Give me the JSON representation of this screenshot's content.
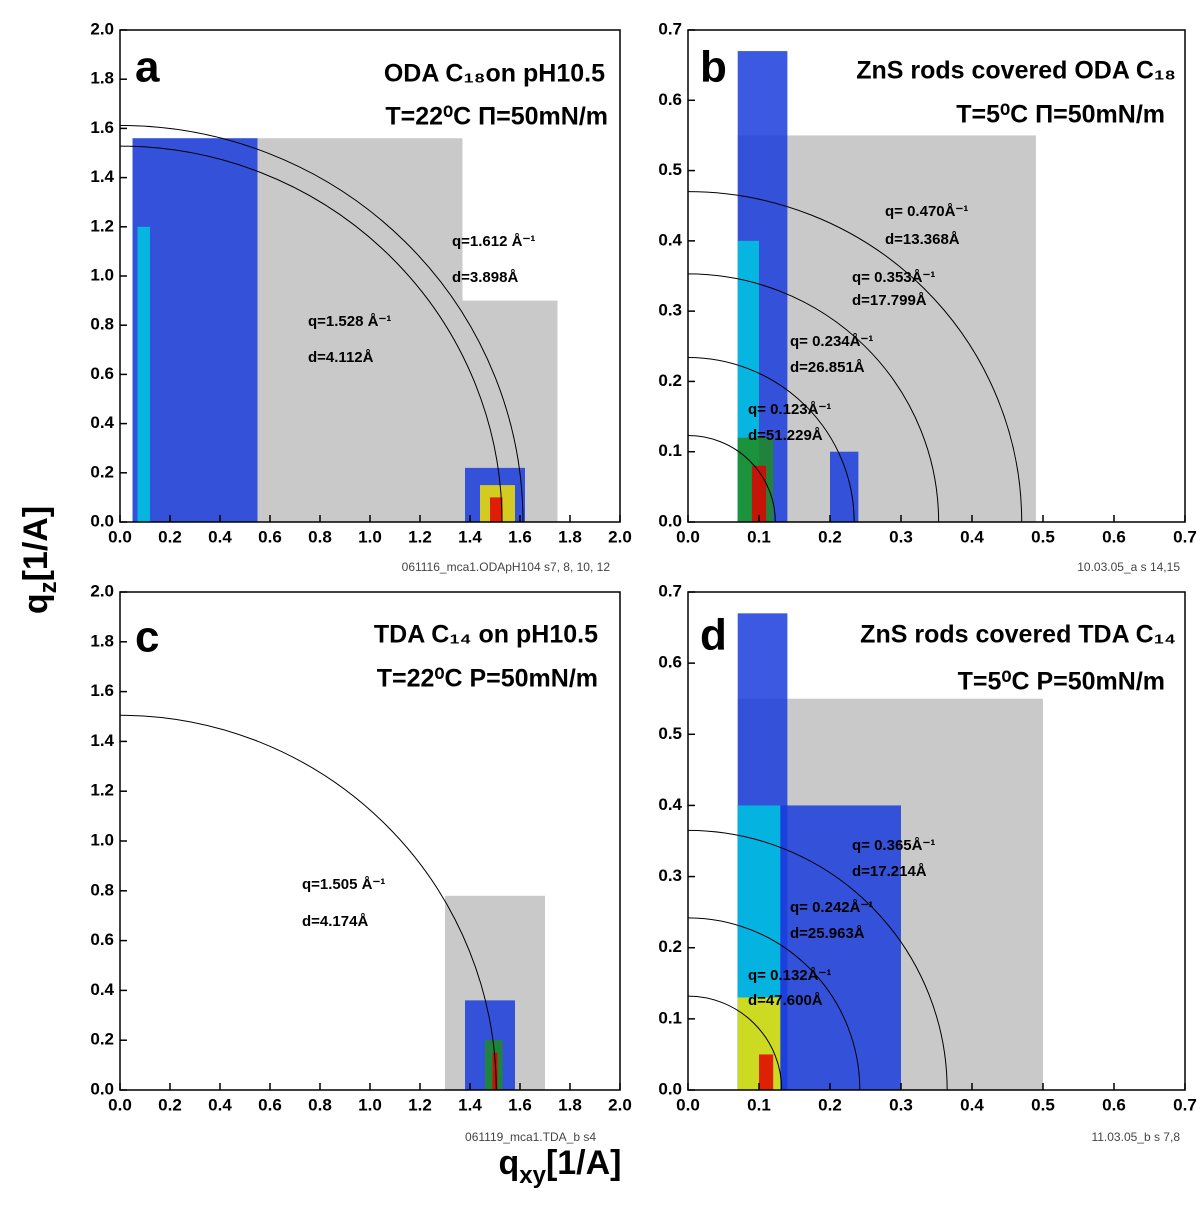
{
  "figure": {
    "xlabel": {
      "base": "q",
      "sub": "xy",
      "rest": "[1/A]"
    },
    "ylabel": {
      "base": "q",
      "sub": "z",
      "rest": "[1/A]"
    }
  },
  "chart_data": [
    {
      "type": "heatmap",
      "panel_label": "a",
      "title": "ODA C₁₈on pH10.5",
      "subtitle": "T=22⁰C Π=50mN/m",
      "footnote": "061116_mca1.ODApH104 s7, 8, 10, 12",
      "xlim": [
        0,
        2.0
      ],
      "ylim": [
        0,
        2.0
      ],
      "xticks": [
        {
          "value": 0,
          "label": "0.0"
        },
        0.2,
        0.4,
        0.6,
        0.8,
        {
          "value": 1,
          "label": "1.0"
        },
        1.2,
        1.4,
        1.6,
        1.8,
        {
          "value": 2,
          "label": "2.0"
        }
      ],
      "yticks": [
        {
          "value": 0,
          "label": "0.0"
        },
        0.2,
        0.4,
        0.6,
        0.8,
        {
          "value": 1,
          "label": "1.0"
        },
        1.2,
        1.4,
        1.6,
        1.8,
        {
          "value": 2,
          "label": "2.0"
        }
      ],
      "arcs": [
        {
          "q": 1.612,
          "label": "q=1.612 Å⁻¹",
          "d_label": "d=3.898Å"
        },
        {
          "q": 1.528,
          "label": "q=1.528 Å⁻¹",
          "d_label": "d=4.112Å"
        }
      ],
      "regions": [
        {
          "x": [
            0.05,
            1.37
          ],
          "y": [
            0,
            1.56
          ],
          "color": "#c0c0c0"
        },
        {
          "x": [
            1.37,
            1.75
          ],
          "y": [
            0,
            0.9
          ],
          "color": "#c0c0c0"
        },
        {
          "x": [
            0.05,
            0.55
          ],
          "y": [
            0,
            1.56
          ],
          "color": "#1a3cdc"
        },
        {
          "x": [
            0.07,
            0.12
          ],
          "y": [
            0,
            1.2
          ],
          "color": "#00c8e0"
        },
        {
          "x": [
            1.38,
            1.62
          ],
          "y": [
            0,
            0.22
          ],
          "color": "#1a3cdc"
        },
        {
          "x": [
            1.44,
            1.58
          ],
          "y": [
            0,
            0.15
          ],
          "color": "#f0e000"
        },
        {
          "x": [
            1.48,
            1.53
          ],
          "y": [
            0,
            0.1
          ],
          "color": "#e00000"
        }
      ]
    },
    {
      "type": "heatmap",
      "panel_label": "b",
      "title": "ZnS rods covered ODA C₁₈",
      "subtitle": "T=5⁰C Π=50mN/m",
      "footnote": "10.03.05_a s 14,15",
      "xlim": [
        0,
        0.7
      ],
      "ylim": [
        0,
        0.7
      ],
      "xticks": [
        {
          "value": 0,
          "label": "0.0"
        },
        0.1,
        0.2,
        0.3,
        0.4,
        0.5,
        0.6,
        0.7
      ],
      "yticks": [
        {
          "value": 0,
          "label": "0.0"
        },
        0.1,
        0.2,
        0.3,
        0.4,
        0.5,
        0.6,
        0.7
      ],
      "arcs": [
        {
          "q": 0.47,
          "label": "q= 0.470Å⁻¹",
          "d_label": "d=13.368Å"
        },
        {
          "q": 0.353,
          "label": "q= 0.353Å⁻¹",
          "d_label": "d=17.799Å"
        },
        {
          "q": 0.234,
          "label": "q= 0.234Å⁻¹",
          "d_label": "d=26.851Å"
        },
        {
          "q": 0.123,
          "label": "q= 0.123Å⁻¹",
          "d_label": "d=51.229Å"
        }
      ],
      "regions": [
        {
          "x": [
            0.07,
            0.49
          ],
          "y": [
            0,
            0.55
          ],
          "color": "#c0c0c0"
        },
        {
          "x": [
            0.07,
            0.14
          ],
          "y": [
            0,
            0.67
          ],
          "color": "#1a3cdc"
        },
        {
          "x": [
            0.07,
            0.1
          ],
          "y": [
            0,
            0.4
          ],
          "color": "#00c8e0"
        },
        {
          "x": [
            0.07,
            0.12
          ],
          "y": [
            0,
            0.12
          ],
          "color": "#1e8c1e"
        },
        {
          "x": [
            0.09,
            0.11
          ],
          "y": [
            0,
            0.08
          ],
          "color": "#e00000"
        },
        {
          "x": [
            0.2,
            0.24
          ],
          "y": [
            0,
            0.1
          ],
          "color": "#1a3cdc"
        }
      ]
    },
    {
      "type": "heatmap",
      "panel_label": "c",
      "title": "TDA C₁₄ on pH10.5",
      "subtitle": "T=22⁰C P=50mN/m",
      "footnote": "061119_mca1.TDA_b s4",
      "xlim": [
        0,
        2.0
      ],
      "ylim": [
        0,
        2.0
      ],
      "xticks": [
        {
          "value": 0,
          "label": "0.0"
        },
        0.2,
        0.4,
        0.6,
        0.8,
        {
          "value": 1,
          "label": "1.0"
        },
        1.2,
        1.4,
        1.6,
        1.8,
        {
          "value": 2,
          "label": "2.0"
        }
      ],
      "yticks": [
        {
          "value": 0,
          "label": "0.0"
        },
        0.2,
        0.4,
        0.6,
        0.8,
        {
          "value": 1,
          "label": "1.0"
        },
        1.2,
        1.4,
        1.6,
        1.8,
        {
          "value": 2,
          "label": "2.0"
        }
      ],
      "arcs": [
        {
          "q": 1.505,
          "label": "q=1.505 Å⁻¹",
          "d_label": "d=4.174Å"
        }
      ],
      "regions": [
        {
          "x": [
            1.3,
            1.7
          ],
          "y": [
            0,
            0.78
          ],
          "color": "#c0c0c0"
        },
        {
          "x": [
            1.38,
            1.58
          ],
          "y": [
            0,
            0.36
          ],
          "color": "#1a3cdc"
        },
        {
          "x": [
            1.46,
            1.53
          ],
          "y": [
            0,
            0.2
          ],
          "color": "#1e8c1e"
        },
        {
          "x": [
            1.49,
            1.51
          ],
          "y": [
            0,
            0.15
          ],
          "color": "#e00000"
        }
      ]
    },
    {
      "type": "heatmap",
      "panel_label": "d",
      "title": "ZnS rods covered TDA C₁₄",
      "subtitle": "T=5⁰C P=50mN/m",
      "footnote": "11.03.05_b s 7,8",
      "xlim": [
        0,
        0.7
      ],
      "ylim": [
        0,
        0.7
      ],
      "xticks": [
        {
          "value": 0,
          "label": "0.0"
        },
        0.1,
        0.2,
        0.3,
        0.4,
        0.5,
        0.6,
        0.7
      ],
      "yticks": [
        {
          "value": 0,
          "label": "0.0"
        },
        0.1,
        0.2,
        0.3,
        0.4,
        0.5,
        0.6,
        0.7
      ],
      "arcs": [
        {
          "q": 0.365,
          "label": "q= 0.365Å⁻¹",
          "d_label": "d=17.214Å"
        },
        {
          "q": 0.242,
          "label": "q= 0.242Å⁻¹",
          "d_label": "d=25.963Å"
        },
        {
          "q": 0.132,
          "label": "q= 0.132Å⁻¹",
          "d_label": "d=47.600Å"
        }
      ],
      "regions": [
        {
          "x": [
            0.07,
            0.5
          ],
          "y": [
            0,
            0.55
          ],
          "color": "#c0c0c0"
        },
        {
          "x": [
            0.07,
            0.3
          ],
          "y": [
            0,
            0.4
          ],
          "color": "#1a3cdc"
        },
        {
          "x": [
            0.07,
            0.14
          ],
          "y": [
            0,
            0.67
          ],
          "color": "#1a3cdc"
        },
        {
          "x": [
            0.07,
            0.13
          ],
          "y": [
            0,
            0.4
          ],
          "color": "#00c8e0"
        },
        {
          "x": [
            0.07,
            0.13
          ],
          "y": [
            0,
            0.13
          ],
          "color": "#f0e000"
        },
        {
          "x": [
            0.1,
            0.12
          ],
          "y": [
            0,
            0.05
          ],
          "color": "#e00000"
        }
      ]
    }
  ]
}
